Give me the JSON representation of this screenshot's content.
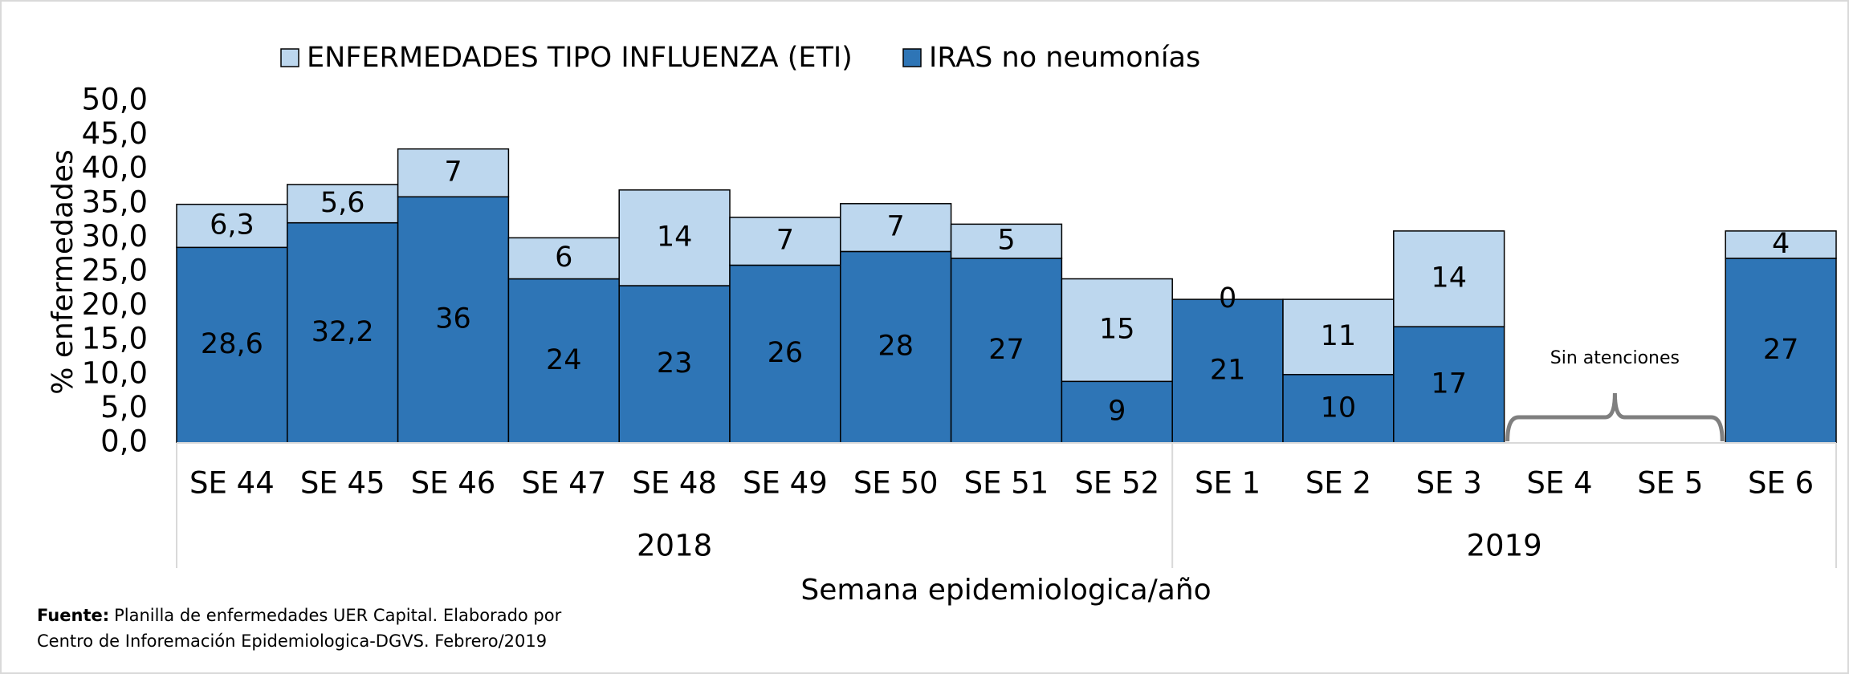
{
  "chart_data": {
    "type": "stacked_bar",
    "categories": [
      "SE 44",
      "SE 45",
      "SE 46",
      "SE 47",
      "SE 48",
      "SE 49",
      "SE 50",
      "SE 51",
      "SE 52",
      "SE 1",
      "SE 2",
      "SE 3",
      "SE 4",
      "SE 5",
      "SE 6"
    ],
    "x_groups": [
      {
        "label": "2018",
        "count": 9
      },
      {
        "label": "2019",
        "count": 6
      }
    ],
    "series": [
      {
        "name": "IRAS no neumonías",
        "color": "#2e75b6",
        "values": [
          28.6,
          32.2,
          36,
          24,
          23,
          26,
          28,
          27,
          9,
          21,
          10,
          17,
          null,
          null,
          27
        ],
        "value_labels": [
          "28,6",
          "32,2",
          "36",
          "24",
          "23",
          "26",
          "28",
          "27",
          "9",
          "21",
          "10",
          "17",
          null,
          null,
          "27"
        ]
      },
      {
        "name": "ENFERMEDADES TIPO INFLUENZA (ETI)",
        "color": "#bdd7ee",
        "values": [
          6.3,
          5.6,
          7,
          6,
          14,
          7,
          7,
          5,
          15,
          0,
          11,
          14,
          null,
          null,
          4
        ],
        "value_labels": [
          "6,3",
          "5,6",
          "7",
          "6",
          "14",
          "7",
          "7",
          "5",
          "15",
          "0",
          "11",
          "14",
          null,
          null,
          "4"
        ]
      }
    ],
    "ylim": [
      0,
      50
    ],
    "yticks": [
      {
        "value": 0,
        "label": "0,0"
      },
      {
        "value": 5,
        "label": "5,0"
      },
      {
        "value": 10,
        "label": "10,0"
      },
      {
        "value": 15,
        "label": "15,0"
      },
      {
        "value": 20,
        "label": "20,0"
      },
      {
        "value": 25,
        "label": "25,0"
      },
      {
        "value": 30,
        "label": "30,0"
      },
      {
        "value": 35,
        "label": "35,0"
      },
      {
        "value": 40,
        "label": "40,0"
      },
      {
        "value": 45,
        "label": "45,0"
      },
      {
        "value": 50,
        "label": "50,0"
      }
    ],
    "y_label": "% enfermedades",
    "x_label": "Semana epidemiologica/año",
    "annotation": "Sin atenciones",
    "legend": "top",
    "source": {
      "label": "Fuente:",
      "lines": [
        "Planilla de enfermedades UER Capital. Elaborado por",
        "Centro de Inforemación Epidemiologica-DGVS. Febrero/2019"
      ]
    }
  }
}
